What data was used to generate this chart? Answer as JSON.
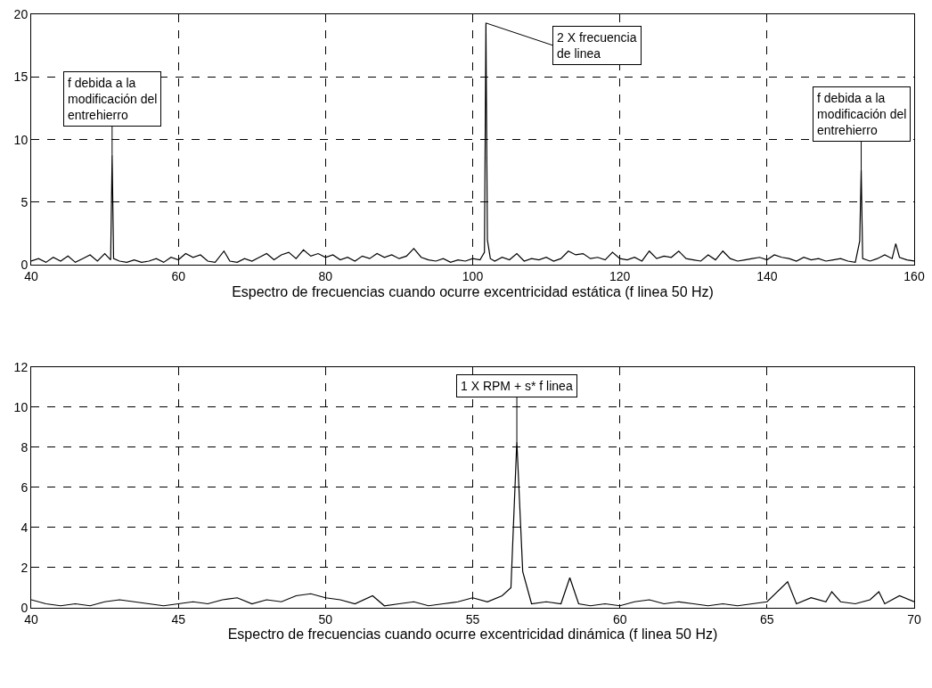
{
  "chart_data": [
    {
      "type": "line",
      "xlabel": "Espectro de frecuencias cuando ocurre excentricidad estática (f linea 50 Hz)",
      "xlim": [
        40,
        160
      ],
      "xticks": [
        40,
        60,
        80,
        100,
        120,
        140,
        160
      ],
      "ylim": [
        0,
        20
      ],
      "yticks": [
        0,
        5,
        10,
        15,
        20
      ],
      "grid": true,
      "marker": "none",
      "line_style": "solid",
      "series": [
        {
          "color": "#000000",
          "x": [
            40,
            41,
            42,
            43,
            44,
            45,
            46,
            47,
            48,
            49,
            50,
            50.8,
            51,
            51.2,
            52,
            53,
            54,
            55,
            56,
            57,
            58,
            59,
            60,
            61,
            62,
            63,
            64,
            65,
            66.2,
            67,
            68,
            69,
            70,
            71,
            72,
            73,
            74,
            75,
            76,
            77,
            78,
            79,
            80,
            81,
            82,
            83,
            84,
            85,
            86,
            87,
            88,
            89,
            90,
            91,
            92,
            93,
            94,
            95,
            96,
            97,
            98,
            99,
            100,
            101,
            101.6,
            101.8,
            102,
            102.4,
            103,
            104,
            105,
            106,
            107,
            108,
            109,
            110,
            111,
            112,
            113,
            114,
            115,
            116,
            117,
            118,
            119,
            120,
            121,
            122,
            123,
            124,
            125,
            126,
            127,
            128,
            129,
            130,
            131,
            132,
            133,
            134,
            135,
            136,
            137,
            138,
            139,
            140,
            141,
            142,
            143,
            144,
            145,
            146,
            147,
            148,
            149,
            150,
            151,
            152,
            152.6,
            152.8,
            153,
            154,
            155,
            156,
            157,
            157.5,
            158,
            159,
            160
          ],
          "values": [
            0.3,
            0.5,
            0.2,
            0.6,
            0.3,
            0.7,
            0.2,
            0.5,
            0.8,
            0.3,
            0.9,
            0.4,
            8.8,
            0.5,
            0.3,
            0.2,
            0.4,
            0.2,
            0.3,
            0.5,
            0.2,
            0.6,
            0.4,
            0.9,
            0.6,
            0.8,
            0.3,
            0.2,
            1.1,
            0.3,
            0.2,
            0.5,
            0.3,
            0.6,
            0.9,
            0.4,
            0.8,
            1.0,
            0.5,
            1.2,
            0.7,
            0.9,
            0.6,
            0.8,
            0.4,
            0.6,
            0.3,
            0.7,
            0.5,
            0.9,
            0.6,
            0.8,
            0.5,
            0.7,
            1.3,
            0.6,
            0.4,
            0.3,
            0.5,
            0.2,
            0.4,
            0.3,
            0.5,
            0.4,
            1.0,
            19.3,
            2.0,
            0.5,
            0.3,
            0.6,
            0.4,
            0.9,
            0.3,
            0.5,
            0.4,
            0.6,
            0.3,
            0.5,
            1.1,
            0.8,
            0.9,
            0.5,
            0.6,
            0.4,
            1.0,
            0.5,
            0.4,
            0.6,
            0.3,
            1.1,
            0.5,
            0.7,
            0.6,
            1.1,
            0.5,
            0.4,
            0.3,
            0.8,
            0.4,
            1.1,
            0.5,
            0.3,
            0.4,
            0.5,
            0.6,
            0.4,
            0.8,
            0.6,
            0.5,
            0.3,
            0.6,
            0.4,
            0.5,
            0.3,
            0.4,
            0.5,
            0.3,
            0.2,
            1.9,
            7.6,
            0.5,
            0.3,
            0.5,
            0.8,
            0.5,
            1.7,
            0.6,
            0.4,
            0.3
          ]
        }
      ],
      "annotations": [
        {
          "text": "f debida a la\nmodificación del\nentrehierro",
          "x": 51,
          "y": 8.8
        },
        {
          "text": "2 X frecuencia\nde linea",
          "x": 101.8,
          "y": 19.3
        },
        {
          "text": "f debida a la\nmodificación del\nentrehierro",
          "x": 152.8,
          "y": 7.6
        }
      ]
    },
    {
      "type": "line",
      "xlabel": "Espectro de frecuencias cuando ocurre excentricidad dinámica (f linea 50 Hz)",
      "xlim": [
        40,
        70
      ],
      "xticks": [
        40,
        45,
        50,
        55,
        60,
        65,
        70
      ],
      "ylim": [
        0,
        12
      ],
      "yticks": [
        0,
        2,
        4,
        6,
        8,
        10,
        12
      ],
      "grid": true,
      "marker": "none",
      "line_style": "solid",
      "series": [
        {
          "color": "#000000",
          "x": [
            40,
            40.5,
            41,
            41.5,
            42,
            42.5,
            43,
            43.5,
            44,
            44.5,
            45,
            45.5,
            46,
            46.5,
            47,
            47.5,
            48,
            48.5,
            49,
            49.5,
            50,
            50.5,
            51,
            51.6,
            52,
            52.5,
            53,
            53.5,
            54,
            54.5,
            55,
            55.5,
            56,
            56.3,
            56.5,
            56.7,
            57,
            57.5,
            58,
            58.3,
            58.6,
            59,
            59.5,
            60,
            60.5,
            61,
            61.5,
            62,
            62.5,
            63,
            63.5,
            64,
            64.5,
            65,
            65.7,
            66,
            66.5,
            67,
            67.2,
            67.5,
            68,
            68.5,
            68.8,
            69,
            69.5,
            70
          ],
          "values": [
            0.4,
            0.2,
            0.1,
            0.2,
            0.1,
            0.3,
            0.4,
            0.3,
            0.2,
            0.1,
            0.2,
            0.3,
            0.2,
            0.4,
            0.5,
            0.2,
            0.4,
            0.3,
            0.6,
            0.7,
            0.5,
            0.4,
            0.2,
            0.6,
            0.1,
            0.2,
            0.3,
            0.1,
            0.2,
            0.3,
            0.5,
            0.3,
            0.6,
            1.0,
            8.3,
            1.8,
            0.2,
            0.3,
            0.2,
            1.5,
            0.2,
            0.1,
            0.2,
            0.1,
            0.3,
            0.4,
            0.2,
            0.3,
            0.2,
            0.1,
            0.2,
            0.1,
            0.2,
            0.3,
            1.3,
            0.2,
            0.5,
            0.3,
            0.8,
            0.3,
            0.2,
            0.4,
            0.8,
            0.2,
            0.6,
            0.3
          ]
        }
      ],
      "annotations": [
        {
          "text": "1 X RPM + s* f linea",
          "x": 56.5,
          "y": 8.3
        }
      ]
    }
  ]
}
